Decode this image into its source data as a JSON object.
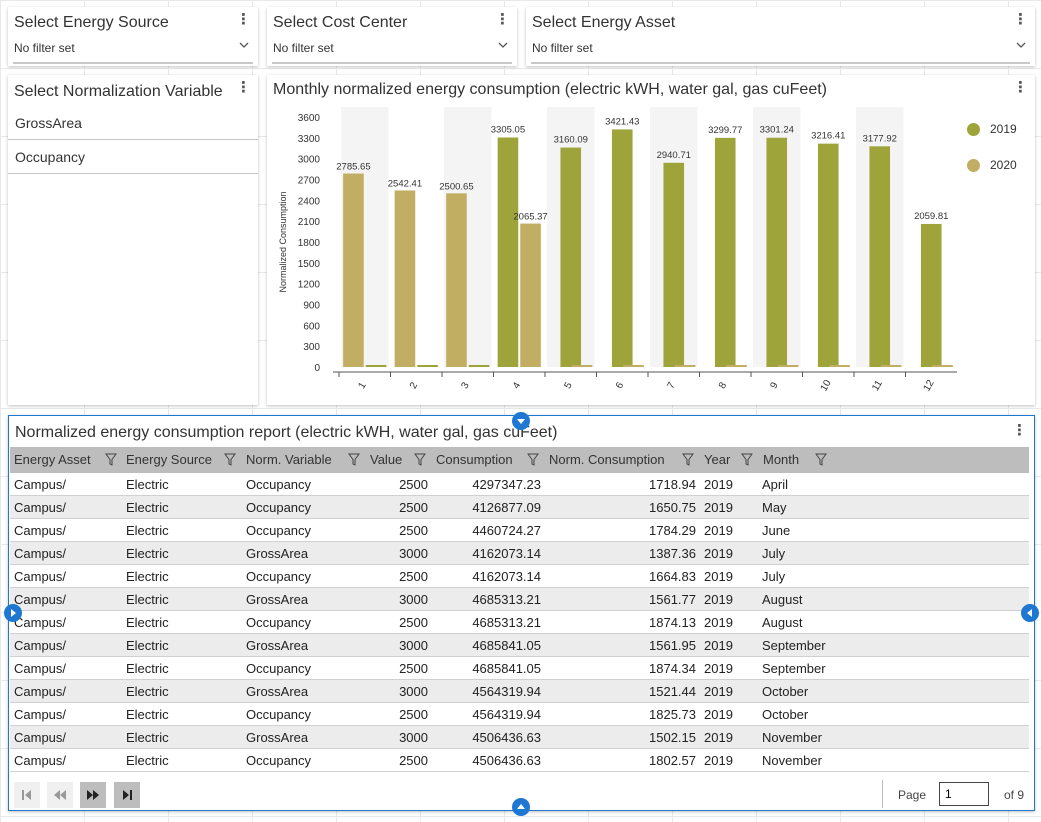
{
  "filters": {
    "energy_source": {
      "title": "Select Energy Source",
      "value": "No filter set"
    },
    "cost_center": {
      "title": "Select Cost Center",
      "value": "No filter set"
    },
    "energy_asset": {
      "title": "Select Energy Asset",
      "value": "No filter set"
    }
  },
  "normalization": {
    "title": "Select Normalization Variable",
    "items": [
      "GrossArea",
      "Occupancy"
    ]
  },
  "chart_data": {
    "type": "bar",
    "title": "Monthly normalized energy consumption (electric kWH, water gal, gas cuFeet)",
    "xlabel": "",
    "ylabel": "Normalized Consumption",
    "ylim": [
      0,
      3600
    ],
    "yticks": [
      0,
      300,
      600,
      900,
      1200,
      1500,
      1800,
      2100,
      2400,
      2700,
      3000,
      3300,
      3600
    ],
    "categories": [
      "1",
      "2",
      "3",
      "4",
      "5",
      "6",
      "7",
      "8",
      "9",
      "10",
      "11",
      "12"
    ],
    "series": [
      {
        "name": "2019",
        "color": "#9ea43a",
        "values": [
          null,
          null,
          null,
          3305.05,
          3160.09,
          3421.43,
          2940.71,
          3299.77,
          3301.24,
          3216.41,
          3177.92,
          2059.81
        ]
      },
      {
        "name": "2020",
        "color": "#c2ae63",
        "values": [
          2785.65,
          2542.41,
          2500.65,
          2065.37,
          null,
          null,
          null,
          null,
          null,
          null,
          null,
          null
        ]
      }
    ],
    "legend": "top-right",
    "grid": false
  },
  "report": {
    "title": "Normalized energy consumption report (electric kWH, water gal, gas cuFeet)",
    "columns": [
      "Energy Asset",
      "Energy Source",
      "Norm. Variable",
      "Value",
      "Consumption",
      "Norm. Consumption",
      "Year",
      "Month"
    ],
    "rows": [
      [
        "Campus/",
        "Electric",
        "Occupancy",
        "2500",
        "4297347.23",
        "1718.94",
        "2019",
        "April"
      ],
      [
        "Campus/",
        "Electric",
        "Occupancy",
        "2500",
        "4126877.09",
        "1650.75",
        "2019",
        "May"
      ],
      [
        "Campus/",
        "Electric",
        "Occupancy",
        "2500",
        "4460724.27",
        "1784.29",
        "2019",
        "June"
      ],
      [
        "Campus/",
        "Electric",
        "GrossArea",
        "3000",
        "4162073.14",
        "1387.36",
        "2019",
        "July"
      ],
      [
        "Campus/",
        "Electric",
        "Occupancy",
        "2500",
        "4162073.14",
        "1664.83",
        "2019",
        "July"
      ],
      [
        "Campus/",
        "Electric",
        "GrossArea",
        "3000",
        "4685313.21",
        "1561.77",
        "2019",
        "August"
      ],
      [
        "Campus/",
        "Electric",
        "Occupancy",
        "2500",
        "4685313.21",
        "1874.13",
        "2019",
        "August"
      ],
      [
        "Campus/",
        "Electric",
        "GrossArea",
        "3000",
        "4685841.05",
        "1561.95",
        "2019",
        "September"
      ],
      [
        "Campus/",
        "Electric",
        "Occupancy",
        "2500",
        "4685841.05",
        "1874.34",
        "2019",
        "September"
      ],
      [
        "Campus/",
        "Electric",
        "GrossArea",
        "3000",
        "4564319.94",
        "1521.44",
        "2019",
        "October"
      ],
      [
        "Campus/",
        "Electric",
        "Occupancy",
        "2500",
        "4564319.94",
        "1825.73",
        "2019",
        "October"
      ],
      [
        "Campus/",
        "Electric",
        "GrossArea",
        "3000",
        "4506436.63",
        "1502.15",
        "2019",
        "November"
      ],
      [
        "Campus/",
        "Electric",
        "Occupancy",
        "2500",
        "4506436.63",
        "1802.57",
        "2019",
        "November"
      ]
    ],
    "pager": {
      "page_label": "Page",
      "page_value": "1",
      "of_label": "of 9"
    }
  },
  "colors": {
    "accent": "#1e78d2",
    "series_2019": "#9ea43a",
    "series_2020": "#c2ae63"
  }
}
